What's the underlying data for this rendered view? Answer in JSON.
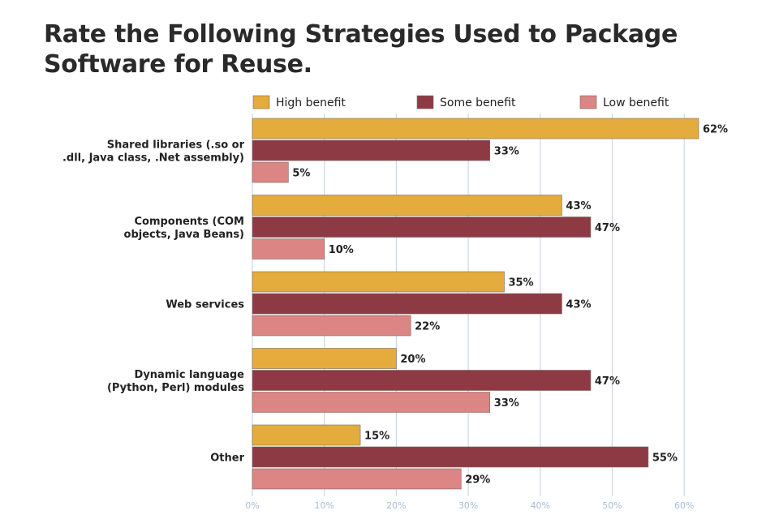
{
  "chart_data": {
    "type": "bar",
    "orientation": "horizontal",
    "title_lines": [
      "Rate the Following Strategies Used to Package",
      "Software for Reuse."
    ],
    "xlabel": "",
    "ylabel": "",
    "xlim": [
      0,
      62
    ],
    "x_ticks": [
      0,
      10,
      20,
      30,
      40,
      50,
      60
    ],
    "x_tick_labels": [
      "0%",
      "10%",
      "20%",
      "30%",
      "40%",
      "50%",
      "60%"
    ],
    "grid": true,
    "legend_position": "top",
    "categories": [
      [
        "Shared libraries (.so or",
        ".dll, Java class, .Net assembly)"
      ],
      [
        "Components (COM",
        "objects, Java Beans)"
      ],
      [
        "Web services"
      ],
      [
        "Dynamic language",
        "(Python, Perl) modules"
      ],
      [
        "Other"
      ]
    ],
    "series": [
      {
        "name": "High benefit",
        "color": "#e3ac3d",
        "values": [
          62,
          43,
          35,
          20,
          15
        ],
        "labels": [
          "62%",
          "43%",
          "35%",
          "20%",
          "15%"
        ]
      },
      {
        "name": "Some benefit",
        "color": "#8e3a45",
        "values": [
          33,
          47,
          43,
          47,
          55
        ],
        "labels": [
          "33%",
          "47%",
          "43%",
          "47%",
          "55%"
        ]
      },
      {
        "name": "Low benefit",
        "color": "#db8585",
        "values": [
          5,
          10,
          22,
          33,
          29
        ],
        "labels": [
          "5%",
          "10%",
          "22%",
          "33%",
          "29%"
        ]
      }
    ]
  }
}
